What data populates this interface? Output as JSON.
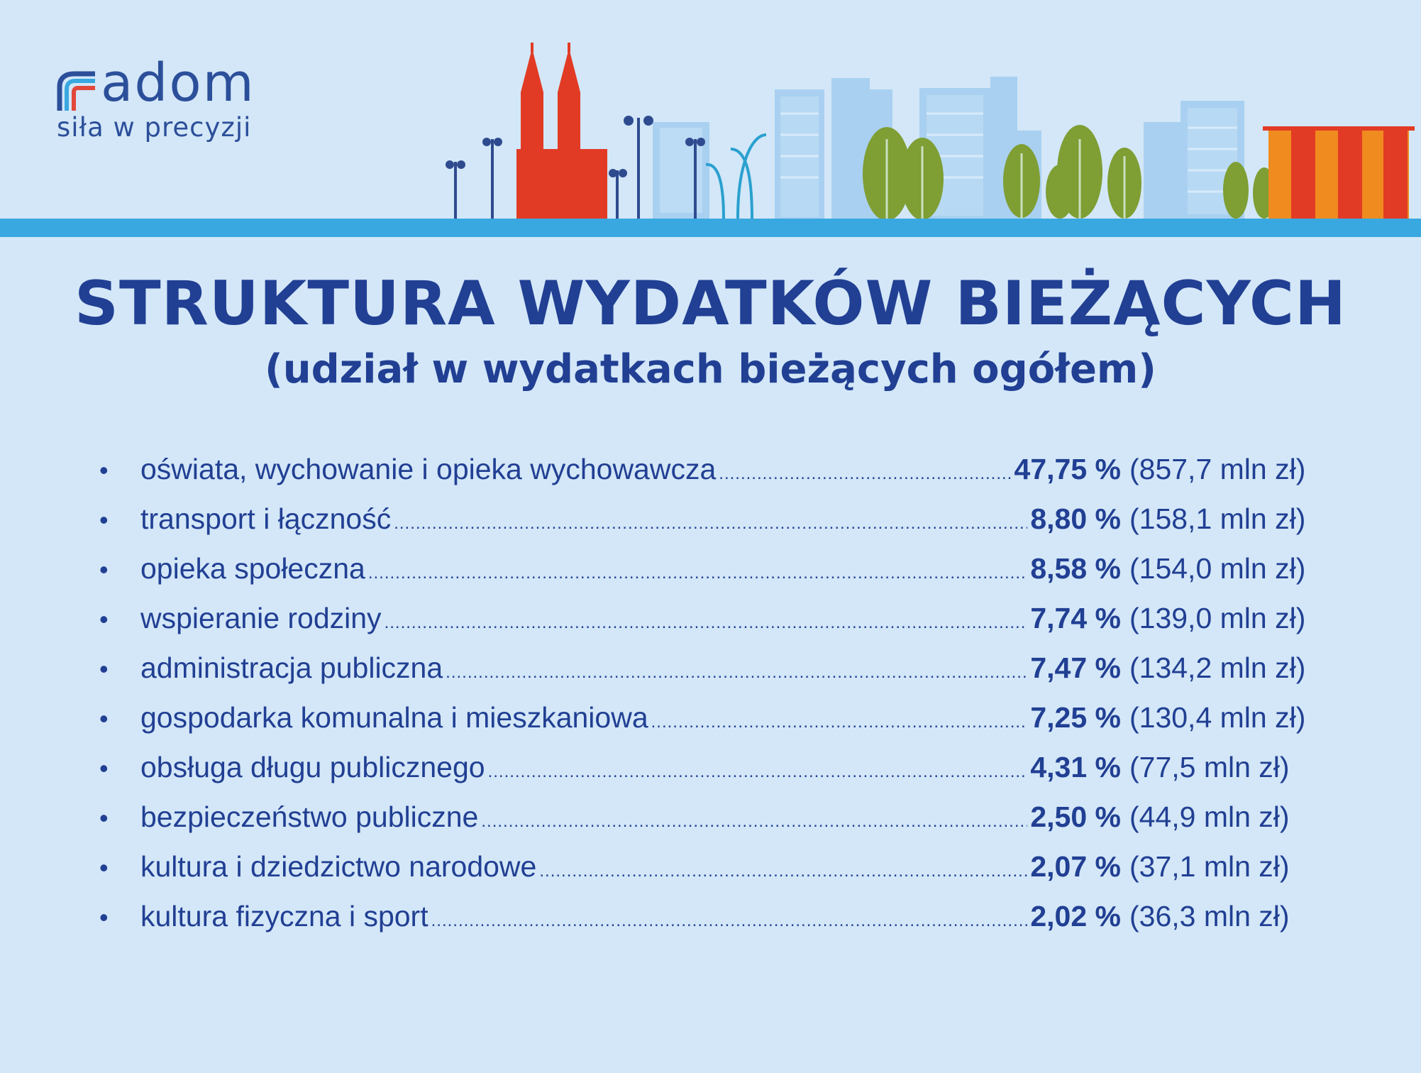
{
  "logo": {
    "name": "adom",
    "tagline": "siła w precyzji"
  },
  "title": "STRUKTURA WYDATKÓW BIEŻĄCYCH",
  "subtitle": "(udział w wydatkach bieżących ogółem)",
  "colors": {
    "background": "#d3e7f8",
    "text": "#213f93",
    "ground": "#3aa8e0",
    "church": "#e23b25",
    "tree": "#7f9e33",
    "kiosk": "#f08b1f"
  },
  "items": [
    {
      "bullet": "•",
      "label": "oświata, wychowanie i opieka wychowawcza",
      "percent": "47,75 %",
      "amount": "(857,7 mln zł)"
    },
    {
      "bullet": "•",
      "label": "transport i łączność",
      "percent": "8,80 %",
      "amount": "(158,1 mln zł)"
    },
    {
      "bullet": "•",
      "label": "opieka społeczna",
      "percent": "8,58 %",
      "amount": "(154,0 mln zł)"
    },
    {
      "bullet": "•",
      "label": "wspieranie rodziny",
      "percent": "7,74 %",
      "amount": "(139,0 mln zł)"
    },
    {
      "bullet": "•",
      "label": "administracja publiczna",
      "percent": "7,47 %",
      "amount": "(134,2 mln zł)"
    },
    {
      "bullet": "•",
      "label": "gospodarka komunalna i mieszkaniowa",
      "percent": "7,25 %",
      "amount": "(130,4 mln zł)"
    },
    {
      "bullet": "•",
      "label": "obsługa długu publicznego",
      "percent": "4,31 %",
      "amount": "(77,5 mln zł)"
    },
    {
      "bullet": "•",
      "label": "bezpieczeństwo publiczne",
      "percent": "2,50 %",
      "amount": "(44,9 mln zł)"
    },
    {
      "bullet": "•",
      "label": "kultura i dziedzictwo narodowe",
      "percent": "2,07 %",
      "amount": "(37,1 mln zł)"
    },
    {
      "bullet": "•",
      "label": "kultura fizyczna i sport",
      "percent": "2,02 %",
      "amount": "(36,3 mln zł)"
    }
  ]
}
